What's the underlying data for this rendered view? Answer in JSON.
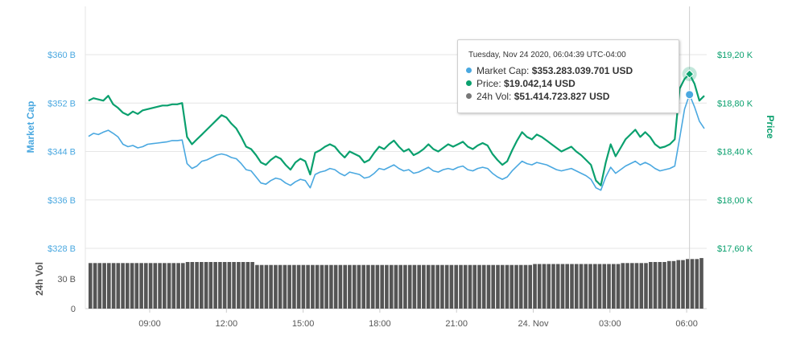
{
  "chart_data": {
    "type": "line",
    "x_ticks": [
      "09:00",
      "12:00",
      "15:00",
      "18:00",
      "21:00",
      "24. Nov",
      "03:00",
      "06:00"
    ],
    "left_axis": {
      "title": "Market Cap",
      "ticks": [
        "$360 B",
        "$352 B",
        "$344 B",
        "$336 B",
        "$328 B"
      ],
      "range": [
        328,
        360
      ],
      "color": "#4aa8e0"
    },
    "right_axis": {
      "title": "Price",
      "ticks": [
        "$19,20 K",
        "$18,80 K",
        "$18,40 K",
        "$18,00 K",
        "$17,60 K"
      ],
      "range": [
        17.6,
        19.2
      ],
      "color": "#0aa06e"
    },
    "volume_axis": {
      "title": "24h Vol",
      "ticks": [
        "30 B",
        "0"
      ],
      "color": "#555555"
    },
    "series": [
      {
        "name": "Market Cap",
        "color": "#4aa8e0",
        "values": [
          346.5,
          347.0,
          346.8,
          347.2,
          347.5,
          347.0,
          346.4,
          345.2,
          344.8,
          345.0,
          344.6,
          344.8,
          345.2,
          345.3,
          345.4,
          345.5,
          345.6,
          345.8,
          345.8,
          345.9,
          342.0,
          341.2,
          341.6,
          342.4,
          342.6,
          343.0,
          343.4,
          343.6,
          343.4,
          343.0,
          342.8,
          342.0,
          341.0,
          340.8,
          339.8,
          338.8,
          338.6,
          339.2,
          339.6,
          339.4,
          338.8,
          338.4,
          339.0,
          339.4,
          339.2,
          338.0,
          340.2,
          340.6,
          340.8,
          341.2,
          341.0,
          340.4,
          340.0,
          340.6,
          340.4,
          340.2,
          339.6,
          339.8,
          340.4,
          341.2,
          341.0,
          341.4,
          341.8,
          341.2,
          340.8,
          341.0,
          340.4,
          340.6,
          341.0,
          341.4,
          340.8,
          340.6,
          341.0,
          341.2,
          341.0,
          341.4,
          341.6,
          341.0,
          340.8,
          341.2,
          341.4,
          341.2,
          340.4,
          339.8,
          339.4,
          339.8,
          340.8,
          341.6,
          342.4,
          342.0,
          341.8,
          342.2,
          342.0,
          341.8,
          341.4,
          341.0,
          340.8,
          341.0,
          341.2,
          340.8,
          340.4,
          340.0,
          339.4,
          338.0,
          337.6,
          339.8,
          341.4,
          340.4,
          341.0,
          341.6,
          342.0,
          342.4,
          341.8,
          342.2,
          341.8,
          341.2,
          340.8,
          341.0,
          341.2,
          341.6,
          346.2,
          351.0,
          353.4,
          351.4,
          349.0,
          347.8
        ],
        "note": "Market Cap in billions USD, read from left axis"
      },
      {
        "name": "Price",
        "color": "#0aa06e",
        "values": [
          18.82,
          18.84,
          18.83,
          18.82,
          18.86,
          18.79,
          18.76,
          18.72,
          18.7,
          18.73,
          18.71,
          18.74,
          18.75,
          18.76,
          18.77,
          18.78,
          18.78,
          18.79,
          18.79,
          18.8,
          18.52,
          18.46,
          18.5,
          18.54,
          18.58,
          18.62,
          18.66,
          18.7,
          18.68,
          18.63,
          18.59,
          18.52,
          18.44,
          18.42,
          18.37,
          18.31,
          18.29,
          18.33,
          18.36,
          18.34,
          18.29,
          18.25,
          18.31,
          18.34,
          18.32,
          18.21,
          18.39,
          18.41,
          18.44,
          18.46,
          18.44,
          18.39,
          18.35,
          18.4,
          18.38,
          18.36,
          18.31,
          18.33,
          18.39,
          18.44,
          18.42,
          18.46,
          18.49,
          18.44,
          18.4,
          18.42,
          18.37,
          18.39,
          18.42,
          18.46,
          18.42,
          18.4,
          18.43,
          18.46,
          18.44,
          18.46,
          18.48,
          18.44,
          18.42,
          18.45,
          18.47,
          18.45,
          18.38,
          18.33,
          18.29,
          18.32,
          18.41,
          18.49,
          18.56,
          18.52,
          18.5,
          18.54,
          18.52,
          18.49,
          18.46,
          18.43,
          18.4,
          18.42,
          18.44,
          18.4,
          18.37,
          18.33,
          18.29,
          18.16,
          18.12,
          18.31,
          18.46,
          18.36,
          18.43,
          18.5,
          18.54,
          18.58,
          18.52,
          18.56,
          18.52,
          18.46,
          18.43,
          18.44,
          18.46,
          18.5,
          18.92,
          19.0,
          19.04,
          18.96,
          18.82,
          18.86
        ],
        "note": "Price in thousands USD, read from right axis"
      },
      {
        "name": "24h Vol",
        "color": "#555555",
        "values": [
          46,
          46,
          46,
          46,
          46,
          46,
          46,
          46,
          46,
          46,
          46,
          46,
          46,
          46,
          46,
          46,
          46,
          46,
          46,
          46,
          46,
          47,
          47,
          47,
          47,
          47,
          47,
          47,
          47,
          47,
          47,
          47,
          47,
          47,
          47,
          47,
          44,
          44,
          44,
          44,
          44,
          44,
          44,
          44,
          44,
          44,
          44,
          44,
          44,
          44,
          44,
          44,
          44,
          44,
          44,
          44,
          44,
          44,
          44,
          44,
          44,
          44,
          44,
          44,
          44,
          44,
          44,
          44,
          44,
          44,
          44,
          44,
          44,
          44,
          44,
          44,
          44,
          44,
          44,
          44,
          44,
          44,
          44,
          44,
          44,
          44,
          44,
          44,
          44,
          44,
          44,
          44,
          44,
          44,
          44,
          44,
          45,
          45,
          45,
          45,
          45,
          45,
          45,
          45,
          45,
          45,
          45,
          45,
          45,
          45,
          45,
          45,
          45,
          45,
          45,
          46,
          46,
          46,
          46,
          46,
          46,
          47,
          47,
          47,
          47,
          48,
          48,
          49,
          49,
          50,
          50,
          50,
          51
        ],
        "note": "24h volume in billions USD, estimated from 30 B gridline"
      }
    ],
    "tooltip": {
      "date": "Tuesday, Nov 24 2020, 06:04:39 UTC-04:00",
      "market_cap_label": "Market Cap:",
      "market_cap_value": "$353.283.039.701 USD",
      "price_label": "Price:",
      "price_value": "$19.042,14 USD",
      "volume_label": "24h Vol:",
      "volume_value": "$51.414.723.827 USD"
    },
    "grid": true,
    "legend": "none"
  }
}
